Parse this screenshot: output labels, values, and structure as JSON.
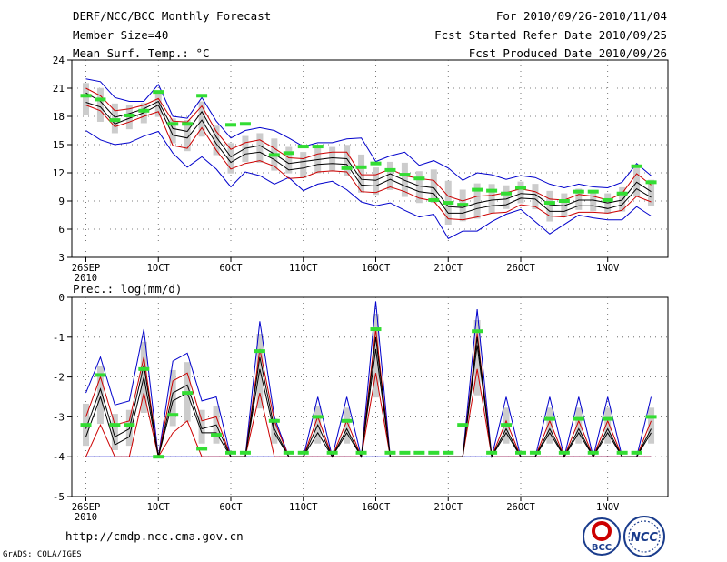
{
  "header": {
    "left": [
      "DERF/NCC/BCC Monthly Forecast",
      "Member Size=40",
      "Mean Surf. Temp.: °C"
    ],
    "right": [
      "For 2010/09/26-2010/11/04",
      "Fcst Started Refer Date 2010/09/25",
      "Fcst Produced Date 2010/09/26"
    ]
  },
  "footer": {
    "url": "http://cmdp.ncc.cma.gov.cn",
    "grads": "GrADS: COLA/IGES"
  },
  "logos": {
    "bcc": "BCC",
    "ncc": "NCC"
  },
  "colors": {
    "envelope": "#0000cc",
    "mean": "#000000",
    "spread": "#cc0000",
    "observed": "#33dd33",
    "bar": "#cccccc"
  },
  "chart_data": [
    {
      "type": "line",
      "title": "Mean Surf. Temp.: °C",
      "ylabel": "°C",
      "ylim": [
        3,
        24
      ],
      "yticks": [
        "3",
        "6",
        "9",
        "12",
        "15",
        "18",
        "21",
        "24"
      ],
      "xticks": [
        "26SEP",
        "1OCT",
        "6OCT",
        "11OCT",
        "16OCT",
        "21OCT",
        "26OCT",
        "1NOV"
      ],
      "xyear": "2010",
      "x": [
        1,
        2,
        3,
        4,
        5,
        6,
        7,
        8,
        9,
        10,
        11,
        12,
        13,
        14,
        15,
        16,
        17,
        18,
        19,
        20,
        21,
        22,
        23,
        24,
        25,
        26,
        27,
        28,
        29,
        30,
        31,
        32,
        33,
        34,
        35,
        36,
        37,
        38,
        39,
        40
      ],
      "series": [
        {
          "name": "max",
          "values": [
            22,
            21.7,
            20,
            19.6,
            19.6,
            21.4,
            18,
            17.8,
            20,
            17.5,
            15.7,
            16.5,
            16.8,
            16.5,
            15.7,
            14.8,
            15.2,
            15.2,
            15.6,
            15.7,
            13.2,
            13.8,
            14.2,
            12.8,
            13.3,
            12.5,
            11.2,
            12,
            11.8,
            11.3,
            11.7,
            11.5,
            10.8,
            10.4,
            10.8,
            10.5,
            10.4,
            11,
            13,
            11.7
          ]
        },
        {
          "name": "upper",
          "values": [
            21,
            20.2,
            18.6,
            18.8,
            19.2,
            19.9,
            17.5,
            17.4,
            19.1,
            16.4,
            14.5,
            15.2,
            15.5,
            14.6,
            13.6,
            13.5,
            14,
            14.2,
            14.2,
            11.8,
            11.8,
            12.4,
            11.7,
            11.4,
            11.2,
            9.5,
            9,
            9.5,
            9.6,
            9.9,
            10.3,
            10,
            9.2,
            9.1,
            9.7,
            9.5,
            9.1,
            9.8,
            11.9,
            10.7
          ]
        },
        {
          "name": "mean",
          "values": [
            20.5,
            19.6,
            17.9,
            18.3,
            18.8,
            19.6,
            16.7,
            16.4,
            18.5,
            15.8,
            13.7,
            14.6,
            14.9,
            14,
            13,
            13.2,
            13.4,
            13.6,
            13.5,
            11.3,
            11.2,
            11.9,
            11.2,
            10.6,
            10.4,
            8.4,
            8.3,
            8.8,
            9.1,
            9.2,
            9.8,
            9.7,
            8.6,
            8.5,
            9.1,
            9.1,
            8.8,
            9.1,
            11,
            10
          ]
        },
        {
          "name": "lower",
          "values": [
            19.5,
            19,
            17.2,
            17.8,
            18.4,
            19.2,
            16,
            15.7,
            17.6,
            15.1,
            13.1,
            14,
            14.2,
            13.4,
            12.3,
            12.5,
            12.9,
            13,
            12.9,
            10.7,
            10.6,
            11.3,
            10.6,
            10,
            9.8,
            7.7,
            7.7,
            8.2,
            8.5,
            8.6,
            9.3,
            9.2,
            7.9,
            7.9,
            8.5,
            8.5,
            8.2,
            8.6,
            10.3,
            9.4
          ]
        },
        {
          "name": "lowerRed",
          "values": [
            19.2,
            18.6,
            16.9,
            17.4,
            18,
            18.5,
            14.9,
            14.6,
            16.8,
            14.4,
            12.4,
            13,
            13.3,
            12.7,
            11.4,
            11.5,
            12.1,
            12.2,
            12.1,
            10,
            9.9,
            10.5,
            10,
            9.3,
            9,
            7.1,
            7,
            7.3,
            7.7,
            7.8,
            8.6,
            8.4,
            7.4,
            7.3,
            7.8,
            7.8,
            7.7,
            8,
            9.5,
            8.9
          ]
        },
        {
          "name": "min",
          "values": [
            16.5,
            15.5,
            15,
            15.2,
            15.9,
            16.4,
            14.1,
            12.6,
            13.7,
            12.4,
            10.5,
            12.1,
            11.7,
            10.8,
            11.5,
            10.1,
            10.8,
            11.1,
            10.2,
            8.9,
            8.5,
            8.8,
            8,
            7.3,
            7.6,
            5,
            5.8,
            5.8,
            6.8,
            7.6,
            8.1,
            6.8,
            5.5,
            6.5,
            7.5,
            7.2,
            7,
            7,
            8.4,
            7.4
          ]
        }
      ],
      "observed": [
        20.2,
        19.8,
        17.6,
        18.1,
        18.6,
        20.6,
        17.2,
        17.2,
        20.2,
        null,
        17.1,
        17.2,
        null,
        13.9,
        14.1,
        14.8,
        14.8,
        null,
        12.5,
        12.6,
        13,
        12.3,
        11.8,
        11.4,
        9.1,
        8.8,
        8.6,
        10.2,
        10.1,
        9.8,
        10.4,
        null,
        8.8,
        9,
        10,
        10,
        9.1,
        9.8,
        12.7,
        11
      ]
    },
    {
      "type": "line",
      "title": "Prec.: log(mm/d)",
      "ylabel": "log(mm/d)",
      "ylim": [
        -5,
        0
      ],
      "yticks": [
        "-5",
        "-4",
        "-3",
        "-2",
        "-1",
        "0"
      ],
      "xticks": [
        "26SEP",
        "1OCT",
        "6OCT",
        "11OCT",
        "16OCT",
        "21OCT",
        "26OCT",
        "1NOV"
      ],
      "xyear": "2010",
      "x": [
        1,
        2,
        3,
        4,
        5,
        6,
        7,
        8,
        9,
        10,
        11,
        12,
        13,
        14,
        15,
        16,
        17,
        18,
        19,
        20,
        21,
        22,
        23,
        24,
        25,
        26,
        27,
        28,
        29,
        30,
        31,
        32,
        33,
        34,
        35,
        36,
        37,
        38,
        39,
        40
      ],
      "series": [
        {
          "name": "max",
          "values": [
            -2.4,
            -1.5,
            -2.7,
            -2.6,
            -0.8,
            -4,
            -1.6,
            -1.4,
            -2.6,
            -2.5,
            -4,
            -4,
            -0.6,
            -3,
            -4,
            -4,
            -2.5,
            -4,
            -2.5,
            -4,
            -0.1,
            -4,
            -4,
            -4,
            -4,
            -4,
            -4,
            -0.3,
            -4,
            -2.5,
            -4,
            -4,
            -2.5,
            -4,
            -2.5,
            -4,
            -2.5,
            -4,
            -4,
            -2.5
          ]
        },
        {
          "name": "upper",
          "values": [
            -3,
            -2,
            -3.2,
            -3.1,
            -1.5,
            -4,
            -2.1,
            -1.9,
            -3.1,
            -3,
            -4,
            -4,
            -1.3,
            -3.1,
            -4,
            -4,
            -3,
            -4,
            -3.1,
            -4,
            -0.8,
            -4,
            -4,
            -4,
            -4,
            -4,
            -4,
            -0.9,
            -4,
            -3.1,
            -4,
            -4,
            -3.1,
            -4,
            -3.1,
            -4,
            -3.1,
            -4,
            -4,
            -3.1
          ]
        },
        {
          "name": "mean",
          "values": [
            -3.3,
            -2.3,
            -3.5,
            -3.3,
            -1.7,
            -4,
            -2.4,
            -2.2,
            -3.3,
            -3.2,
            -4,
            -4,
            -1.5,
            -3.3,
            -4,
            -4,
            -3.2,
            -4,
            -3.3,
            -4,
            -1,
            -4,
            -4,
            -4,
            -4,
            -4,
            -4,
            -1,
            -4,
            -3.3,
            -4,
            -4,
            -3.3,
            -4,
            -3.3,
            -4,
            -3.3,
            -4,
            -4,
            -3.3
          ]
        },
        {
          "name": "lower",
          "values": [
            -3.5,
            -2.5,
            -3.7,
            -3.5,
            -2,
            -4,
            -2.6,
            -2.4,
            -3.4,
            -3.4,
            -4,
            -4,
            -1.8,
            -3.4,
            -4,
            -4,
            -3.4,
            -4,
            -3.4,
            -4,
            -1.3,
            -4,
            -4,
            -4,
            -4,
            -4,
            -4,
            -1.2,
            -4,
            -3.4,
            -4,
            -4,
            -3.4,
            -4,
            -3.4,
            -4,
            -3.4,
            -4,
            -4,
            -3.4
          ]
        },
        {
          "name": "lowerRed",
          "values": [
            -4,
            -3.2,
            -4,
            -4,
            -2.4,
            -4,
            -3.4,
            -3.1,
            -4,
            -4,
            -4,
            -4,
            -2.4,
            -4,
            -4,
            -4,
            -4,
            -4,
            -4,
            -4,
            -1.9,
            -4,
            -4,
            -4,
            -4,
            -4,
            -4,
            -1.8,
            -4,
            -4,
            -4,
            -4,
            -4,
            -4,
            -4,
            -4,
            -4,
            -4,
            -4,
            -4
          ]
        },
        {
          "name": "min",
          "values": [
            -4,
            -4,
            -4,
            -4,
            -4,
            -4,
            -4,
            -4,
            -4,
            -4,
            -4,
            -4,
            -4,
            -4,
            -4,
            -4,
            -4,
            -4,
            -4,
            -4,
            -4,
            -4,
            -4,
            -4,
            -4,
            -4,
            -4,
            -4,
            -4,
            -4,
            -4,
            -4,
            -4,
            -4,
            -4,
            -4,
            -4,
            -4,
            -4,
            -4
          ]
        }
      ],
      "observed": [
        -3.2,
        -1.95,
        -3.2,
        -3.2,
        -1.8,
        -4,
        -2.95,
        -2.4,
        -3.8,
        -3.45,
        -3.9,
        -3.9,
        -1.35,
        -3.1,
        -3.9,
        -3.9,
        -3,
        -3.9,
        -3.1,
        -3.9,
        -0.8,
        -3.9,
        -3.9,
        -3.9,
        -3.9,
        -3.9,
        -3.2,
        -0.85,
        -3.9,
        -3.2,
        -3.9,
        -3.9,
        -3.05,
        -3.9,
        -3.05,
        -3.9,
        -3.05,
        -3.9,
        -3.9,
        -3
      ]
    }
  ]
}
